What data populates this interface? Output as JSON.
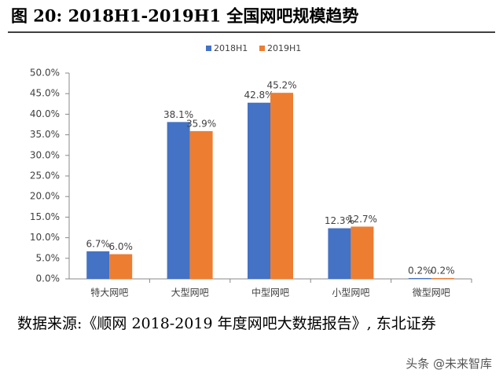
{
  "title": "图 20: 2018H1-2019H1 全国网吧规模趋势",
  "chart_data": {
    "type": "bar",
    "categories": [
      "特大网吧",
      "大型网吧",
      "中型网吧",
      "小型网吧",
      "微型网吧"
    ],
    "series": [
      {
        "name": "2018H1",
        "color": "#4472c4",
        "values": [
          6.7,
          38.1,
          42.8,
          12.3,
          0.2
        ],
        "value_labels": [
          "6.7%",
          "38.1%",
          "42.8%",
          "12.3%",
          "0.2%"
        ]
      },
      {
        "name": "2019H1",
        "color": "#ed7d31",
        "values": [
          6.0,
          35.9,
          45.2,
          12.7,
          0.2
        ],
        "value_labels": [
          "6.0%",
          "35.9%",
          "45.2%",
          "12.7%",
          "0.2%"
        ]
      }
    ],
    "ylim": [
      0,
      50
    ],
    "yticks": [
      {
        "value": 0,
        "label": "0.0%"
      },
      {
        "value": 5,
        "label": "5.0%"
      },
      {
        "value": 10,
        "label": "10.0%"
      },
      {
        "value": 15,
        "label": "15.0%"
      },
      {
        "value": 20,
        "label": "20.0%"
      },
      {
        "value": 25,
        "label": "25.0%"
      },
      {
        "value": 30,
        "label": "30.0%"
      },
      {
        "value": 35,
        "label": "35.0%"
      },
      {
        "value": 40,
        "label": "40.0%"
      },
      {
        "value": 45,
        "label": "45.0%"
      },
      {
        "value": 50,
        "label": "50.0%"
      }
    ],
    "legend": "top"
  },
  "source": "数据来源:《顺网 2018-2019 年度网吧大数据报告》, 东北证券",
  "watermark": "头条 @未来智库"
}
